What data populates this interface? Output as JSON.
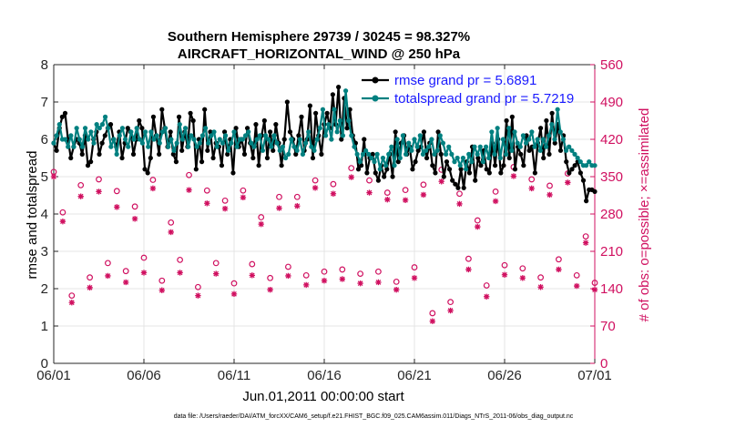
{
  "chart_data": {
    "type": "line",
    "title": "Southern Hemisphere 29739 / 30245 = 98.327%",
    "subtitle": "AIRCRAFT_HORIZONTAL_WIND @ 250 hPa",
    "xlabel": "Jun.01,2011 00:00:00 start",
    "ylabel_left": "rmse and totalspread",
    "ylabel_right": "# of obs: o=possible; ×=assimilated",
    "footnote": "data file: /Users/raeder/DAI/ATM_forcXX/CAM6_setup/f.e21.FHIST_BGC.f09_025.CAM6assim.011/Diags_NTrS_2011-06/obs_diag_output.nc",
    "x_ticks": [
      0,
      5,
      10,
      15,
      20,
      25,
      30
    ],
    "x_tick_labels": [
      "06/01",
      "06/06",
      "06/11",
      "06/16",
      "06/21",
      "06/26",
      "07/01"
    ],
    "xlim": [
      0,
      30
    ],
    "ylim_left": [
      0,
      8
    ],
    "y_ticks_left": [
      0,
      1,
      2,
      3,
      4,
      5,
      6,
      7,
      8
    ],
    "ylim_right": [
      0,
      560
    ],
    "y_ticks_right": [
      0,
      70,
      140,
      210,
      280,
      350,
      420,
      490,
      560
    ],
    "colors": {
      "rmse": "#000000",
      "spread": "#008080",
      "obs": "#d01060",
      "right_axis": "#d01060",
      "legend_text": "#1a1aff"
    },
    "series": [
      {
        "name": "rmse grand pr = 5.6891",
        "values": [
          5.9,
          5.7,
          6.3,
          6.6,
          6.7,
          6.0,
          5.5,
          5.8,
          6.0,
          5.9,
          5.6,
          6.1,
          5.3,
          5.4,
          6.0,
          6.2,
          5.6,
          5.9,
          6.1,
          6.3,
          6.4,
          6.0,
          5.8,
          6.2,
          5.5,
          5.9,
          6.3,
          6.2,
          5.6,
          6.0,
          6.5,
          6.3,
          5.2,
          5.1,
          5.5,
          6.6,
          6.1,
          5.6,
          6.8,
          6.3,
          5.8,
          6.2,
          5.6,
          5.4,
          6.6,
          5.7,
          6.2,
          5.8,
          6.7,
          6.5,
          5.2,
          6.0,
          5.4,
          6.8,
          5.7,
          6.2,
          5.5,
          5.9,
          5.8,
          5.3,
          6.2,
          5.6,
          6.0,
          5.1,
          6.3,
          5.8,
          6.0,
          5.6,
          6.3,
          5.9,
          5.5,
          6.4,
          5.3,
          6.1,
          6.5,
          5.5,
          6.2,
          5.7,
          6.4,
          5.9,
          5.3,
          6.0,
          7.0,
          6.2,
          6.0,
          5.6,
          6.1,
          6.6,
          5.7,
          6.0,
          6.9,
          5.5,
          6.7,
          6.1,
          5.6,
          6.4,
          6.7,
          6.3,
          7.2,
          6.4,
          7.4,
          6.0,
          7.1,
          6.3,
          6.8,
          6.1,
          5.9,
          5.2,
          5.3,
          6.0,
          5.1,
          5.5,
          5.6,
          5.1,
          4.9,
          5.3,
          5.0,
          5.2,
          5.6,
          5.0,
          6.2,
          5.4,
          5.9,
          6.1,
          5.6,
          5.8,
          5.2,
          5.4,
          5.7,
          5.8,
          6.2,
          5.5,
          5.9,
          5.3,
          5.1,
          6.2,
          5.6,
          5.0,
          5.4,
          5.2,
          4.9,
          4.8,
          4.7,
          5.2,
          4.7,
          5.4,
          5.1,
          5.8,
          4.9,
          5.5,
          5.3,
          5.7,
          5.2,
          5.1,
          5.9,
          5.3,
          6.0,
          5.1,
          5.3,
          6.5,
          5.5,
          6.6,
          5.2,
          5.8,
          5.6,
          5.3,
          6.1,
          5.7,
          5.8,
          5.1,
          5.9,
          6.3,
          5.5,
          6.5,
          5.6,
          6.7,
          5.9,
          6.4,
          5.7,
          6.1,
          5.4,
          5.1,
          5.2,
          5.3,
          5.4,
          5.1,
          4.9,
          4.35,
          4.65,
          4.65,
          4.6
        ],
        "y_axis": "left"
      },
      {
        "name": "totalspread grand pr = 5.7219",
        "values": [
          5.9,
          6.1,
          6.4,
          6.0,
          6.0,
          5.8,
          6.1,
          5.8,
          6.3,
          6.0,
          5.8,
          6.3,
          6.0,
          6.2,
          5.9,
          6.4,
          6.3,
          6.4,
          6.6,
          6.3,
          5.8,
          6.0,
          5.6,
          6.1,
          6.3,
          6.0,
          5.8,
          6.2,
          6.0,
          6.3,
          6.0,
          5.9,
          6.2,
          5.8,
          6.2,
          6.0,
          6.1,
          5.9,
          6.2,
          6.3,
          5.8,
          6.0,
          5.7,
          5.9,
          6.4,
          6.0,
          6.3,
          5.8,
          6.1,
          6.0,
          5.8,
          5.9,
          6.1,
          6.3,
          5.9,
          6.1,
          6.2,
          5.8,
          6.0,
          5.9,
          6.1,
          5.7,
          5.9,
          6.2,
          5.8,
          6.0,
          6.0,
          6.1,
          6.2,
          5.9,
          5.8,
          6.0,
          6.1,
          5.7,
          6.1,
          6.0,
          5.8,
          6.1,
          5.9,
          5.7,
          5.8,
          5.5,
          5.6,
          6.0,
          5.8,
          5.7,
          6.0,
          5.6,
          5.9,
          6.2,
          5.8,
          5.7,
          6.0,
          6.3,
          6.8,
          6.1,
          6.4,
          6.0,
          6.8,
          6.2,
          6.5,
          6.1,
          7.3,
          6.5,
          6.1,
          5.8,
          5.6,
          5.4,
          5.6,
          5.7,
          5.6,
          5.5,
          5.4,
          5.6,
          5.2,
          5.5,
          5.3,
          5.6,
          5.8,
          5.3,
          6.0,
          5.5,
          6.1,
          5.6,
          5.9,
          5.7,
          6.0,
          5.8,
          6.1,
          5.6,
          5.7,
          5.8,
          6.0,
          5.6,
          5.7,
          6.1,
          5.9,
          5.6,
          5.8,
          5.6,
          5.4,
          5.5,
          5.3,
          5.5,
          5.2,
          5.6,
          5.4,
          5.8,
          5.6,
          5.8,
          5.4,
          5.8,
          5.5,
          6.2,
          5.6,
          6.3,
          5.5,
          6.0,
          5.6,
          6.3,
          5.7,
          6.2,
          5.9,
          5.8,
          6.1,
          5.9,
          6.0,
          6.2,
          5.8,
          6.0,
          5.7,
          6.0,
          5.8,
          6.1,
          6.4,
          6.0,
          6.8,
          6.2,
          6.0,
          5.7,
          5.8,
          5.7,
          5.6,
          5.5,
          5.4,
          5.3,
          5.3,
          5.4,
          5.3,
          5.3
        ],
        "y_axis": "left"
      }
    ],
    "obs_days": [
      0.0,
      0.5,
      1.0,
      1.5,
      2.0,
      2.5,
      3.0,
      3.5,
      4.0,
      4.5,
      5.0,
      5.5,
      6.0,
      6.5,
      7.0,
      7.5,
      8.0,
      8.5,
      9.0,
      9.5,
      10.0,
      10.5,
      11.0,
      11.5,
      12.0,
      12.5,
      13.0,
      13.5,
      14.0,
      14.5,
      15.0,
      15.5,
      16.0,
      16.5,
      17.0,
      17.5,
      18.0,
      18.5,
      19.0,
      19.5,
      20.0,
      20.5,
      21.0,
      21.5,
      22.0,
      22.5,
      23.0,
      23.5,
      24.0,
      24.5,
      25.0,
      25.5,
      26.0,
      26.5,
      27.0,
      27.5,
      28.0,
      28.5,
      29.0,
      29.5,
      30.0
    ],
    "obs_possible": [
      359,
      283,
      127,
      334,
      161,
      345,
      188,
      323,
      173,
      294,
      198,
      344,
      155,
      264,
      194,
      353,
      143,
      324,
      188,
      305,
      150,
      324,
      186,
      274,
      160,
      312,
      181,
      312,
      165,
      343,
      172,
      336,
      176,
      366,
      168,
      343,
      172,
      320,
      153,
      325,
      180,
      335,
      94,
      363,
      115,
      318,
      196,
      268,
      146,
      322,
      184,
      368,
      178,
      345,
      161,
      333,
      195,
      356,
      165,
      238,
      151
    ],
    "obs_assimilated": [
      350,
      266,
      114,
      313,
      142,
      322,
      164,
      293,
      152,
      271,
      170,
      328,
      137,
      246,
      170,
      325,
      127,
      300,
      168,
      290,
      130,
      311,
      165,
      261,
      138,
      291,
      164,
      295,
      147,
      329,
      155,
      318,
      158,
      349,
      150,
      320,
      152,
      307,
      138,
      306,
      160,
      316,
      79,
      341,
      99,
      299,
      176,
      256,
      125,
      304,
      166,
      351,
      160,
      328,
      143,
      316,
      176,
      339,
      145,
      226,
      138
    ],
    "legend": [
      {
        "label": "rmse grand pr = 5.6891"
      },
      {
        "label": "totalspread grand pr = 5.7219"
      }
    ]
  }
}
